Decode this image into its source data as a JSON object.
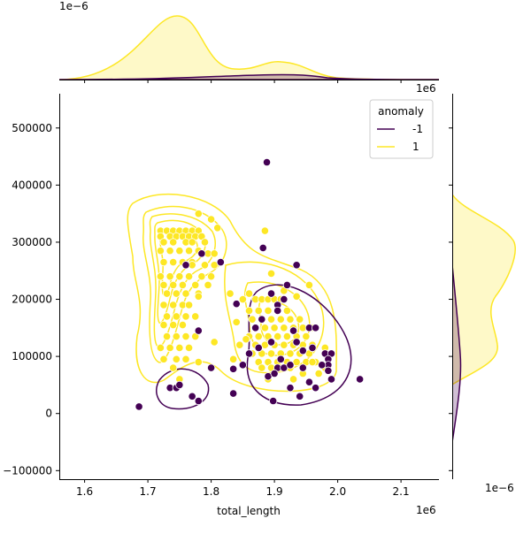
{
  "chart_data": {
    "type": "scatter",
    "title": "",
    "xlabel": "total_length",
    "ylabel": "",
    "x_offset_label": "1e6",
    "y_offset_label": "",
    "top_marginal_offset_label": "1e−6",
    "right_marginal_offset_label": "1e−6",
    "xlim": [
      1560000,
      2160000
    ],
    "ylim": [
      -115000,
      560000
    ],
    "x_ticks": [
      1600000,
      1700000,
      1800000,
      1900000,
      2000000,
      2100000
    ],
    "x_tick_labels": [
      "1.6",
      "1.7",
      "1.8",
      "1.9",
      "2.0",
      "2.1"
    ],
    "y_ticks": [
      -100000,
      0,
      100000,
      200000,
      300000,
      400000,
      500000
    ],
    "y_tick_labels": [
      "−100000",
      "0",
      "100000",
      "200000",
      "300000",
      "400000",
      "500000"
    ],
    "legend": {
      "title": "anomaly",
      "placement": "top-right",
      "entries": [
        {
          "label": "-1",
          "color": "#440154"
        },
        {
          "label": "1",
          "color": "#fde725"
        }
      ]
    },
    "series": [
      {
        "name": "1",
        "color": "#fde725",
        "points": [
          [
            1720000,
            320000
          ],
          [
            1730000,
            320000
          ],
          [
            1740000,
            320000
          ],
          [
            1750000,
            320000
          ],
          [
            1760000,
            320000
          ],
          [
            1770000,
            320000
          ],
          [
            1780000,
            320000
          ],
          [
            1720000,
            310000
          ],
          [
            1735000,
            310000
          ],
          [
            1745000,
            310000
          ],
          [
            1755000,
            310000
          ],
          [
            1765000,
            310000
          ],
          [
            1775000,
            310000
          ],
          [
            1785000,
            310000
          ],
          [
            1725000,
            300000
          ],
          [
            1740000,
            300000
          ],
          [
            1760000,
            300000
          ],
          [
            1770000,
            300000
          ],
          [
            1790000,
            300000
          ],
          [
            1720000,
            285000
          ],
          [
            1735000,
            285000
          ],
          [
            1750000,
            285000
          ],
          [
            1765000,
            285000
          ],
          [
            1780000,
            285000
          ],
          [
            1795000,
            280000
          ],
          [
            1805000,
            280000
          ],
          [
            1725000,
            265000
          ],
          [
            1740000,
            265000
          ],
          [
            1755000,
            265000
          ],
          [
            1770000,
            265000
          ],
          [
            1790000,
            260000
          ],
          [
            1805000,
            260000
          ],
          [
            1720000,
            240000
          ],
          [
            1735000,
            240000
          ],
          [
            1750000,
            240000
          ],
          [
            1765000,
            240000
          ],
          [
            1785000,
            240000
          ],
          [
            1800000,
            240000
          ],
          [
            1725000,
            225000
          ],
          [
            1740000,
            225000
          ],
          [
            1755000,
            225000
          ],
          [
            1775000,
            225000
          ],
          [
            1795000,
            225000
          ],
          [
            1730000,
            210000
          ],
          [
            1745000,
            210000
          ],
          [
            1760000,
            210000
          ],
          [
            1780000,
            210000
          ],
          [
            1725000,
            190000
          ],
          [
            1740000,
            190000
          ],
          [
            1755000,
            190000
          ],
          [
            1765000,
            190000
          ],
          [
            1730000,
            170000
          ],
          [
            1745000,
            170000
          ],
          [
            1760000,
            170000
          ],
          [
            1775000,
            170000
          ],
          [
            1725000,
            155000
          ],
          [
            1740000,
            155000
          ],
          [
            1755000,
            155000
          ],
          [
            1730000,
            135000
          ],
          [
            1745000,
            135000
          ],
          [
            1760000,
            135000
          ],
          [
            1775000,
            135000
          ],
          [
            1720000,
            115000
          ],
          [
            1735000,
            115000
          ],
          [
            1750000,
            115000
          ],
          [
            1765000,
            115000
          ],
          [
            1725000,
            95000
          ],
          [
            1745000,
            95000
          ],
          [
            1760000,
            95000
          ],
          [
            1780000,
            90000
          ],
          [
            1740000,
            80000
          ],
          [
            1750000,
            60000
          ],
          [
            1780000,
            350000
          ],
          [
            1800000,
            340000
          ],
          [
            1810000,
            325000
          ],
          [
            1770000,
            260000
          ],
          [
            1780000,
            205000
          ],
          [
            1805000,
            125000
          ],
          [
            1860000,
            210000
          ],
          [
            1870000,
            200000
          ],
          [
            1880000,
            200000
          ],
          [
            1890000,
            200000
          ],
          [
            1900000,
            200000
          ],
          [
            1910000,
            200000
          ],
          [
            1860000,
            180000
          ],
          [
            1875000,
            180000
          ],
          [
            1890000,
            180000
          ],
          [
            1905000,
            180000
          ],
          [
            1920000,
            180000
          ],
          [
            1865000,
            165000
          ],
          [
            1880000,
            165000
          ],
          [
            1895000,
            165000
          ],
          [
            1910000,
            165000
          ],
          [
            1925000,
            165000
          ],
          [
            1940000,
            165000
          ],
          [
            1870000,
            150000
          ],
          [
            1885000,
            150000
          ],
          [
            1900000,
            150000
          ],
          [
            1915000,
            150000
          ],
          [
            1930000,
            150000
          ],
          [
            1945000,
            150000
          ],
          [
            1960000,
            150000
          ],
          [
            1860000,
            135000
          ],
          [
            1875000,
            135000
          ],
          [
            1890000,
            135000
          ],
          [
            1905000,
            135000
          ],
          [
            1920000,
            135000
          ],
          [
            1935000,
            135000
          ],
          [
            1950000,
            135000
          ],
          [
            1870000,
            120000
          ],
          [
            1885000,
            120000
          ],
          [
            1900000,
            120000
          ],
          [
            1915000,
            120000
          ],
          [
            1930000,
            120000
          ],
          [
            1945000,
            120000
          ],
          [
            1960000,
            120000
          ],
          [
            1865000,
            105000
          ],
          [
            1880000,
            105000
          ],
          [
            1895000,
            105000
          ],
          [
            1910000,
            105000
          ],
          [
            1925000,
            105000
          ],
          [
            1940000,
            105000
          ],
          [
            1955000,
            105000
          ],
          [
            1875000,
            90000
          ],
          [
            1890000,
            90000
          ],
          [
            1905000,
            90000
          ],
          [
            1920000,
            90000
          ],
          [
            1935000,
            90000
          ],
          [
            1950000,
            90000
          ],
          [
            1965000,
            90000
          ],
          [
            1880000,
            80000
          ],
          [
            1895000,
            80000
          ],
          [
            1910000,
            80000
          ],
          [
            1925000,
            80000
          ],
          [
            1945000,
            70000
          ],
          [
            1970000,
            70000
          ],
          [
            1830000,
            210000
          ],
          [
            1850000,
            200000
          ],
          [
            1840000,
            160000
          ],
          [
            1855000,
            130000
          ],
          [
            1845000,
            120000
          ],
          [
            1835000,
            95000
          ],
          [
            1850000,
            85000
          ],
          [
            1895000,
            245000
          ],
          [
            1885000,
            320000
          ],
          [
            1915000,
            215000
          ],
          [
            1935000,
            205000
          ],
          [
            1955000,
            225000
          ],
          [
            1965000,
            150000
          ],
          [
            1980000,
            115000
          ],
          [
            1890000,
            60000
          ],
          [
            1930000,
            60000
          ],
          [
            1960000,
            90000
          ],
          [
            1980000,
            80000
          ]
        ]
      },
      {
        "name": "-1",
        "color": "#440154",
        "points": [
          [
            1686000,
            12000
          ],
          [
            1888000,
            440000
          ],
          [
            1840000,
            192000
          ],
          [
            1882000,
            290000
          ],
          [
            1760000,
            260000
          ],
          [
            1785000,
            280000
          ],
          [
            1815000,
            265000
          ],
          [
            1780000,
            145000
          ],
          [
            1735000,
            45000
          ],
          [
            1745000,
            45000
          ],
          [
            1750000,
            50000
          ],
          [
            1770000,
            30000
          ],
          [
            1780000,
            22000
          ],
          [
            1800000,
            80000
          ],
          [
            1835000,
            35000
          ],
          [
            1835000,
            78000
          ],
          [
            1898000,
            22000
          ],
          [
            1925000,
            45000
          ],
          [
            1940000,
            30000
          ],
          [
            1955000,
            55000
          ],
          [
            1965000,
            45000
          ],
          [
            1980000,
            105000
          ],
          [
            1990000,
            105000
          ],
          [
            1985000,
            95000
          ],
          [
            1985000,
            85000
          ],
          [
            1985000,
            75000
          ],
          [
            1990000,
            60000
          ],
          [
            2035000,
            60000
          ],
          [
            1935000,
            260000
          ],
          [
            1920000,
            225000
          ],
          [
            1915000,
            200000
          ],
          [
            1905000,
            190000
          ],
          [
            1895000,
            210000
          ],
          [
            1905000,
            180000
          ],
          [
            1870000,
            150000
          ],
          [
            1880000,
            165000
          ],
          [
            1895000,
            125000
          ],
          [
            1875000,
            115000
          ],
          [
            1860000,
            105000
          ],
          [
            1850000,
            85000
          ],
          [
            1905000,
            80000
          ],
          [
            1915000,
            80000
          ],
          [
            1925000,
            85000
          ],
          [
            1945000,
            110000
          ],
          [
            1955000,
            150000
          ],
          [
            1965000,
            150000
          ],
          [
            1975000,
            85000
          ],
          [
            1945000,
            80000
          ],
          [
            1890000,
            65000
          ],
          [
            1900000,
            70000
          ],
          [
            1910000,
            95000
          ],
          [
            1935000,
            125000
          ],
          [
            1930000,
            145000
          ],
          [
            1960000,
            115000
          ]
        ]
      }
    ]
  }
}
